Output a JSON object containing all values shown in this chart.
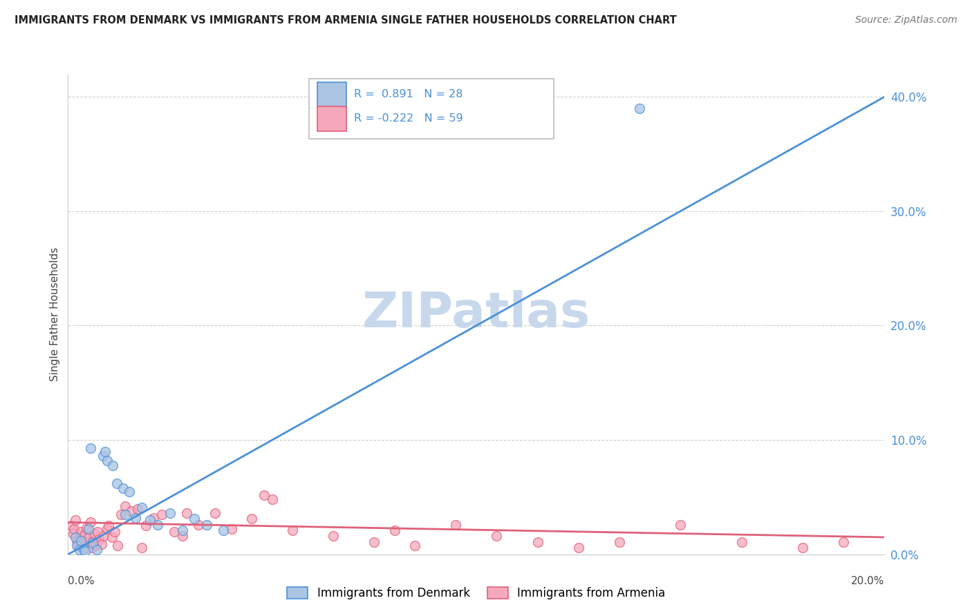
{
  "title": "IMMIGRANTS FROM DENMARK VS IMMIGRANTS FROM ARMENIA SINGLE FATHER HOUSEHOLDS CORRELATION CHART",
  "source": "Source: ZipAtlas.com",
  "ylabel": "Single Father Households",
  "ytick_vals": [
    0.0,
    10.0,
    20.0,
    30.0,
    40.0
  ],
  "xlim": [
    0.0,
    20.0
  ],
  "ylim": [
    0.0,
    42.0
  ],
  "denmark_color": "#aac4e2",
  "armenia_color": "#f5a8bc",
  "denmark_line_color": "#4a90d9",
  "armenia_line_color": "#e0607a",
  "watermark_color": "#c8d8ec",
  "denmark_line_x": [
    0.0,
    20.0
  ],
  "denmark_line_y": [
    0.0,
    40.0
  ],
  "armenia_line_x": [
    0.0,
    20.0
  ],
  "armenia_line_y": [
    2.8,
    1.5
  ],
  "denmark_points_x": [
    0.18,
    0.22,
    0.28,
    0.32,
    0.38,
    0.42,
    0.5,
    0.6,
    0.7,
    0.85,
    0.95,
    1.1,
    1.2,
    1.35,
    1.5,
    1.65,
    1.8,
    2.0,
    2.2,
    2.5,
    2.8,
    3.1,
    3.4,
    3.8,
    0.55,
    0.9,
    1.4,
    14.0
  ],
  "denmark_points_y": [
    1.5,
    0.8,
    0.4,
    1.2,
    0.5,
    0.3,
    2.2,
    1.0,
    0.4,
    8.6,
    8.2,
    7.8,
    6.2,
    5.8,
    5.5,
    3.2,
    4.1,
    3.0,
    2.6,
    3.6,
    2.1,
    3.1,
    2.6,
    2.1,
    9.3,
    9.0,
    3.5,
    39.0
  ],
  "armenia_points_x": [
    0.08,
    0.12,
    0.15,
    0.18,
    0.22,
    0.25,
    0.28,
    0.32,
    0.35,
    0.38,
    0.42,
    0.45,
    0.48,
    0.52,
    0.55,
    0.58,
    0.62,
    0.65,
    0.68,
    0.72,
    0.75,
    0.82,
    0.88,
    0.95,
    1.0,
    1.08,
    1.15,
    1.22,
    1.3,
    1.4,
    1.55,
    1.7,
    1.9,
    2.1,
    2.3,
    2.6,
    2.9,
    3.2,
    3.6,
    4.0,
    4.5,
    5.0,
    5.5,
    6.5,
    7.5,
    8.5,
    9.5,
    10.5,
    11.5,
    12.5,
    13.5,
    15.0,
    16.5,
    18.0,
    19.0,
    4.8,
    8.0,
    1.8,
    2.8
  ],
  "armenia_points_y": [
    2.5,
    1.8,
    2.2,
    3.0,
    1.2,
    0.8,
    1.5,
    2.0,
    1.0,
    0.5,
    1.8,
    2.3,
    1.0,
    1.5,
    2.8,
    0.6,
    1.2,
    1.8,
    0.8,
    2.0,
    1.3,
    0.9,
    1.6,
    2.2,
    2.5,
    1.5,
    2.0,
    0.8,
    3.5,
    4.2,
    3.8,
    4.0,
    2.5,
    3.2,
    3.5,
    2.0,
    3.6,
    2.6,
    3.6,
    2.2,
    3.1,
    4.8,
    2.1,
    1.6,
    1.1,
    0.8,
    2.6,
    1.6,
    1.1,
    0.6,
    1.1,
    2.6,
    1.1,
    0.6,
    1.1,
    5.2,
    2.1,
    0.6,
    1.6
  ]
}
